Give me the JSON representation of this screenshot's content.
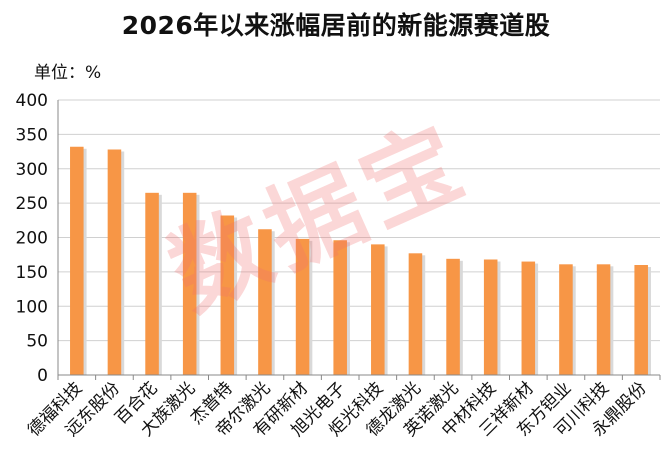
{
  "chart_data": {
    "type": "bar",
    "title": "2026年以来涨幅居前的新能源赛道股",
    "unit_label": "单位：%",
    "categories": [
      "德福科技",
      "远东股份",
      "百合花",
      "大族激光",
      "杰普特",
      "帝尔激光",
      "有研新材",
      "旭光电子",
      "炬光科技",
      "德龙激光",
      "英诺激光",
      "中材科技",
      "三祥新材",
      "东方钽业",
      "可川科技",
      "永鼎股份"
    ],
    "values": [
      332,
      328,
      265,
      265,
      232,
      212,
      198,
      196,
      190,
      177,
      169,
      168,
      165,
      161,
      161,
      160
    ],
    "ylim": [
      0,
      400
    ],
    "yticks": [
      0,
      50,
      100,
      150,
      200,
      250,
      300,
      350,
      400
    ],
    "bar_color": "#f79646",
    "gridlines": true,
    "legend": "none"
  },
  "watermark": "数据宝"
}
